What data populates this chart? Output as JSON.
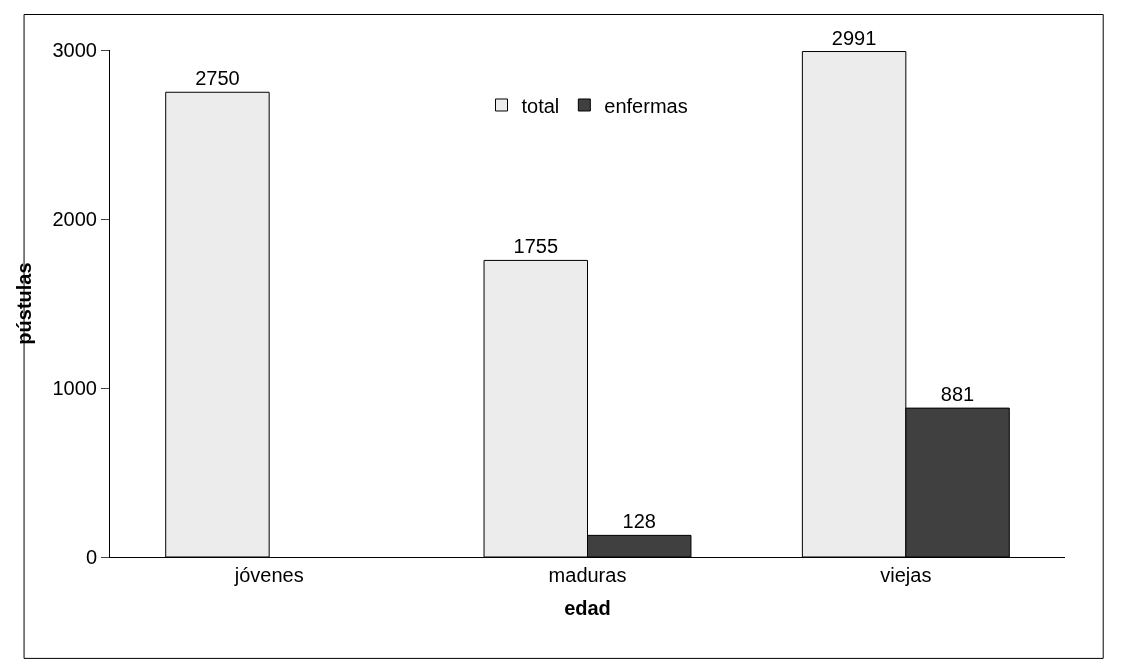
{
  "chart_data": {
    "type": "bar",
    "xlabel": "edad",
    "ylabel": "pústulas",
    "categories": [
      "jóvenes",
      "maduras",
      "viejas"
    ],
    "series": [
      {
        "name": "total",
        "color": "#ececec",
        "values": [
          2750,
          1755,
          2991
        ]
      },
      {
        "name": "enfermas",
        "color": "#404040",
        "values": [
          null,
          128,
          881
        ]
      }
    ],
    "ylim": [
      0,
      3000
    ],
    "yticks": [
      0,
      1000,
      2000,
      3000
    ],
    "legend": "top",
    "data_labels": true
  }
}
